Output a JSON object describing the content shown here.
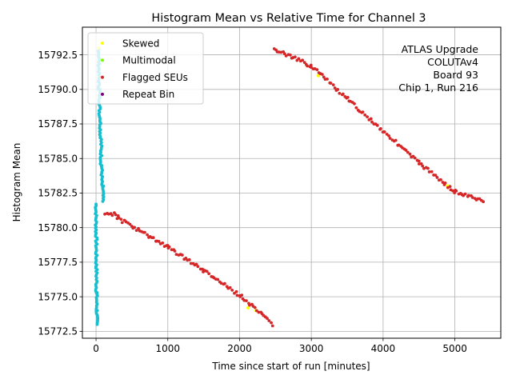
{
  "chart_data": {
    "type": "scatter",
    "title": "Histogram Mean vs Relative Time for Channel 3",
    "xlabel": "Time since start of run [minutes]",
    "ylabel": "Histogram Mean",
    "xlim": [
      -190,
      5640
    ],
    "ylim": [
      15772.0,
      15794.5
    ],
    "xticks": [
      0,
      1000,
      2000,
      3000,
      4000,
      5000
    ],
    "yticks": [
      15772.5,
      15775.0,
      15777.5,
      15780.0,
      15782.5,
      15785.0,
      15787.5,
      15790.0,
      15792.5
    ],
    "ytick_labels": [
      "15772.5",
      "15775.0",
      "15777.5",
      "15780.0",
      "15782.5",
      "15785.0",
      "15787.5",
      "15790.0",
      "15792.5"
    ],
    "grid": true,
    "legend_position": "top-left",
    "annotation": [
      "ATLAS Upgrade",
      "COLUTAv4",
      "Board 93",
      "Chip 1, Run 216"
    ],
    "series": [
      {
        "name": "Normal",
        "color": "#17becf",
        "in_legend": false,
        "segments": [
          {
            "x0": 0,
            "x1": 0,
            "y0": 15781.7,
            "y1": 15779.6
          },
          {
            "x0": 3,
            "x1": 3,
            "y0": 15779.6,
            "y1": 15777.2
          },
          {
            "x0": 6,
            "x1": 6,
            "y0": 15777.2,
            "y1": 15775.3
          },
          {
            "x0": 9,
            "x1": 9,
            "y0": 15775.3,
            "y1": 15774.0
          },
          {
            "x0": 12,
            "x1": 12,
            "y0": 15774.0,
            "y1": 15773.0
          },
          {
            "x0": 40,
            "x1": 40,
            "y0": 15792.9,
            "y1": 15790.0
          },
          {
            "x0": 50,
            "x1": 50,
            "y0": 15790.0,
            "y1": 15788.0
          },
          {
            "x0": 60,
            "x1": 60,
            "y0": 15788.0,
            "y1": 15786.5
          },
          {
            "x0": 70,
            "x1": 70,
            "y0": 15786.5,
            "y1": 15784.5
          },
          {
            "x0": 80,
            "x1": 80,
            "y0": 15784.5,
            "y1": 15783.0
          },
          {
            "x0": 95,
            "x1": 95,
            "y0": 15783.0,
            "y1": 15781.9
          }
        ]
      },
      {
        "name": "Skewed",
        "color": "#ffff00",
        "in_legend": true,
        "points": [
          [
            35,
            15793.0
          ],
          [
            2120,
            15774.2
          ],
          [
            2230,
            15774.0
          ],
          [
            3100,
            15791.0
          ],
          [
            4900,
            15783.0
          ]
        ]
      },
      {
        "name": "Multimodal",
        "color": "#7cfc00",
        "in_legend": true,
        "points": []
      },
      {
        "name": "Flagged SEUs",
        "color": "#d62728",
        "in_legend": true,
        "segments": [
          {
            "x0": 130,
            "x1": 300,
            "y0": 15781.1,
            "y1": 15780.9
          },
          {
            "x0": 300,
            "x1": 1000,
            "y0": 15780.7,
            "y1": 15778.6
          },
          {
            "x0": 1000,
            "x1": 1500,
            "y0": 15778.6,
            "y1": 15776.9
          },
          {
            "x0": 1500,
            "x1": 2000,
            "y0": 15776.9,
            "y1": 15775.1
          },
          {
            "x0": 2000,
            "x1": 2460,
            "y0": 15775.1,
            "y1": 15773.0
          },
          {
            "x0": 2480,
            "x1": 3000,
            "y0": 15792.9,
            "y1": 15791.7
          },
          {
            "x0": 3000,
            "x1": 3500,
            "y0": 15791.7,
            "y1": 15789.3
          },
          {
            "x0": 3500,
            "x1": 4000,
            "y0": 15789.3,
            "y1": 15787.0
          },
          {
            "x0": 4000,
            "x1": 4500,
            "y0": 15787.0,
            "y1": 15784.7
          },
          {
            "x0": 4500,
            "x1": 5000,
            "y0": 15784.7,
            "y1": 15782.6
          },
          {
            "x0": 5000,
            "x1": 5400,
            "y0": 15782.6,
            "y1": 15781.9
          }
        ]
      },
      {
        "name": "Repeat Bin",
        "color": "#800080",
        "in_legend": true,
        "points": []
      }
    ]
  }
}
